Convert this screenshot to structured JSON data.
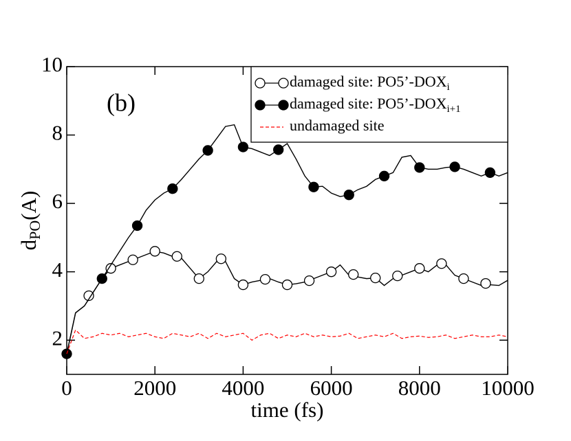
{
  "chart_data": {
    "type": "line",
    "title": "(b)",
    "xlabel": "time (fs)",
    "ylabel": "d",
    "ylabel_sub": "PO",
    "ylabel_rest": "(A)",
    "xlim": [
      0,
      10000
    ],
    "ylim": [
      1,
      10
    ],
    "xticks": [
      0,
      2000,
      4000,
      6000,
      8000,
      10000
    ],
    "yticks": [
      2,
      4,
      6,
      8,
      10
    ],
    "legend": "upper right",
    "x": [
      0,
      200,
      400,
      600,
      800,
      1000,
      1200,
      1400,
      1600,
      1800,
      2000,
      2200,
      2400,
      2600,
      2800,
      3000,
      3200,
      3400,
      3600,
      3800,
      4000,
      4200,
      4400,
      4600,
      4800,
      5000,
      5200,
      5400,
      5600,
      5800,
      6000,
      6200,
      6400,
      6600,
      6800,
      7000,
      7200,
      7400,
      7600,
      7800,
      8000,
      8200,
      8400,
      8600,
      8800,
      9000,
      9200,
      9400,
      9600,
      9800,
      10000
    ],
    "series": [
      {
        "name": "damaged site: PO5’-DOX",
        "name_sub": "i",
        "color": "#000000",
        "marker": "open",
        "dash": false,
        "values": [
          1.6,
          2.8,
          3.0,
          3.4,
          3.8,
          4.1,
          4.2,
          4.3,
          4.4,
          4.5,
          4.6,
          4.55,
          4.45,
          4.4,
          4.1,
          3.8,
          4.0,
          4.3,
          4.3,
          3.8,
          3.62,
          3.7,
          3.75,
          3.8,
          3.7,
          3.62,
          3.65,
          3.7,
          3.8,
          3.9,
          4.0,
          4.2,
          3.9,
          3.85,
          3.8,
          3.82,
          3.6,
          3.8,
          3.9,
          4.0,
          4.1,
          4.0,
          4.2,
          4.2,
          3.9,
          3.8,
          3.7,
          3.6,
          3.62,
          3.6,
          3.75
        ],
        "markers": {
          "x": [
            500,
            1000,
            1500,
            2000,
            2500,
            3000,
            3500,
            4000,
            4500,
            5000,
            5500,
            6000,
            6500,
            7000,
            7500,
            8000,
            8500,
            9000,
            9500
          ],
          "values": [
            3.3,
            4.1,
            4.35,
            4.6,
            4.45,
            3.8,
            4.38,
            3.62,
            3.78,
            3.62,
            3.74,
            4.0,
            3.92,
            3.82,
            3.88,
            4.1,
            4.24,
            3.8,
            3.66
          ]
        }
      },
      {
        "name": "damaged site: PO5’-DOX",
        "name_sub": "i+1",
        "color": "#000000",
        "marker": "filled",
        "dash": false,
        "values": [
          1.6,
          2.8,
          3.0,
          3.4,
          3.8,
          4.2,
          4.6,
          5.0,
          5.35,
          5.8,
          6.1,
          6.3,
          6.43,
          6.7,
          7.0,
          7.3,
          7.55,
          7.9,
          8.25,
          8.3,
          7.65,
          7.6,
          7.5,
          7.4,
          7.57,
          7.75,
          7.3,
          6.8,
          6.48,
          6.5,
          6.3,
          6.2,
          6.25,
          6.4,
          6.5,
          6.7,
          6.8,
          6.9,
          7.35,
          7.4,
          7.05,
          7.0,
          7.0,
          7.05,
          7.07,
          7.0,
          6.9,
          6.8,
          6.9,
          6.8,
          6.9
        ],
        "markers": {
          "x": [
            0,
            800,
            1600,
            2400,
            3200,
            4000,
            4800,
            5600,
            6400,
            7200,
            8000,
            8800,
            9600
          ],
          "values": [
            1.6,
            3.8,
            5.35,
            6.43,
            7.55,
            7.65,
            7.57,
            6.48,
            6.25,
            6.8,
            7.05,
            7.07,
            6.9
          ]
        }
      },
      {
        "name": "undamaged site",
        "color": "#ff0000",
        "marker": null,
        "dash": true,
        "values": [
          1.6,
          2.3,
          2.05,
          2.1,
          2.2,
          2.15,
          2.2,
          2.1,
          2.15,
          2.2,
          2.1,
          2.05,
          2.2,
          2.15,
          2.1,
          2.2,
          2.05,
          2.2,
          2.1,
          2.15,
          2.2,
          2.0,
          2.15,
          2.2,
          2.05,
          2.15,
          2.1,
          2.2,
          2.1,
          2.15,
          2.1,
          2.12,
          2.2,
          2.05,
          2.1,
          2.15,
          2.1,
          2.2,
          2.05,
          2.1,
          2.12,
          2.08,
          2.1,
          2.15,
          2.05,
          2.1,
          2.15,
          2.1,
          2.1,
          2.15,
          2.1
        ]
      }
    ]
  }
}
